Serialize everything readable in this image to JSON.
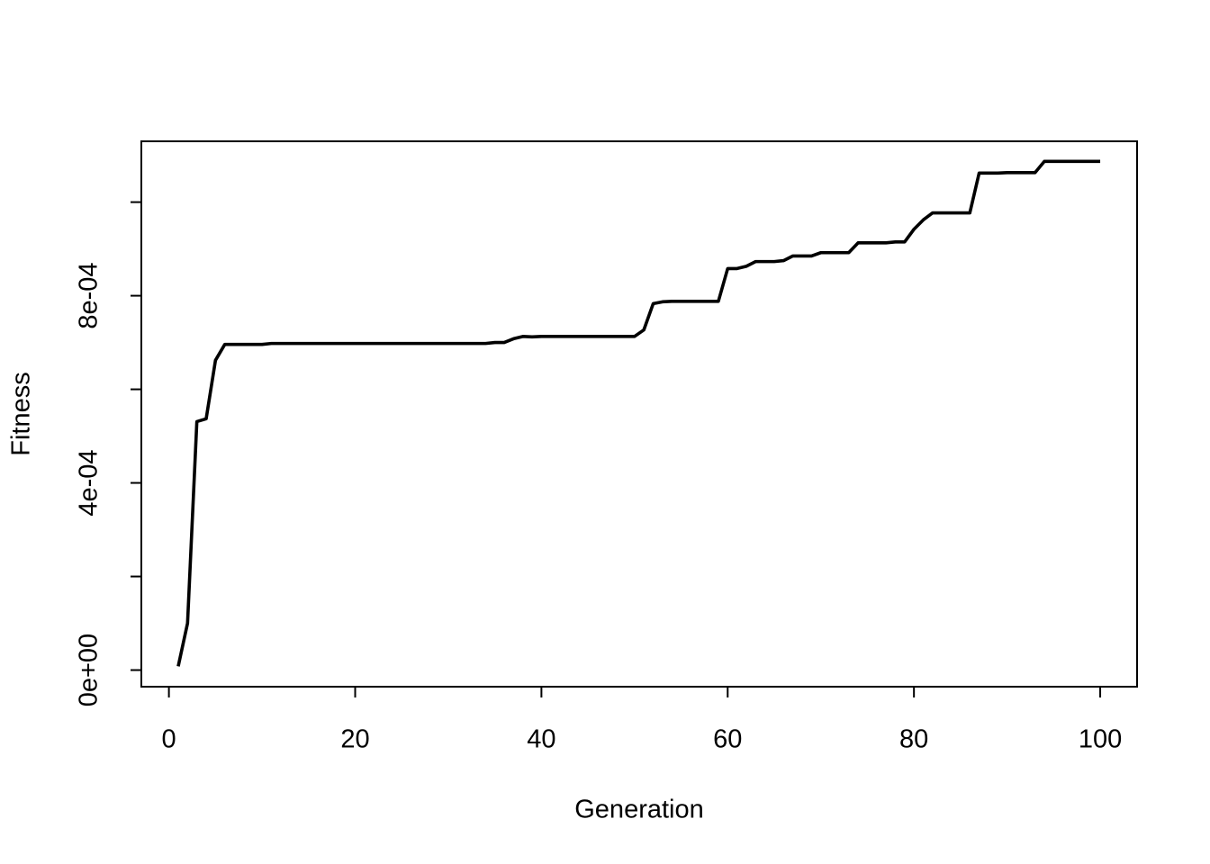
{
  "chart_data": {
    "type": "line",
    "x_label": "Generation",
    "y_label": "Fitness",
    "x": [
      1,
      2,
      3,
      4,
      5,
      6,
      7,
      8,
      9,
      10,
      11,
      12,
      13,
      14,
      15,
      16,
      17,
      18,
      19,
      20,
      21,
      22,
      23,
      24,
      25,
      26,
      27,
      28,
      29,
      30,
      31,
      32,
      33,
      34,
      35,
      36,
      37,
      38,
      39,
      40,
      41,
      42,
      43,
      44,
      45,
      46,
      47,
      48,
      49,
      50,
      51,
      52,
      53,
      54,
      55,
      56,
      57,
      58,
      59,
      60,
      61,
      62,
      63,
      64,
      65,
      66,
      67,
      68,
      69,
      70,
      71,
      72,
      73,
      74,
      75,
      76,
      77,
      78,
      79,
      80,
      81,
      82,
      83,
      84,
      85,
      86,
      87,
      88,
      89,
      90,
      91,
      92,
      93,
      94,
      95,
      96,
      97,
      98,
      99,
      100
    ],
    "values": [
      8e-06,
      0.0001,
      0.000531,
      0.000537,
      0.000662,
      0.000696,
      0.000696,
      0.000696,
      0.000696,
      0.000696,
      0.000698,
      0.000698,
      0.000698,
      0.000698,
      0.000698,
      0.000698,
      0.000698,
      0.000698,
      0.000698,
      0.000698,
      0.000698,
      0.000698,
      0.000698,
      0.000698,
      0.000698,
      0.000698,
      0.000698,
      0.000698,
      0.000698,
      0.000698,
      0.000698,
      0.000698,
      0.000698,
      0.000698,
      0.0007,
      0.0007,
      0.000708,
      0.000713,
      0.000712,
      0.000713,
      0.000713,
      0.000713,
      0.000713,
      0.000713,
      0.000713,
      0.000713,
      0.000713,
      0.000713,
      0.000713,
      0.000713,
      0.000727,
      0.000783,
      0.000787,
      0.000788,
      0.000788,
      0.000788,
      0.000788,
      0.000788,
      0.000788,
      0.000858,
      0.000858,
      0.000863,
      0.000873,
      0.000873,
      0.000873,
      0.000875,
      0.000885,
      0.000885,
      0.000885,
      0.000892,
      0.000892,
      0.000892,
      0.000892,
      0.000913,
      0.000913,
      0.000913,
      0.000913,
      0.000915,
      0.000915,
      0.000942,
      0.000962,
      0.000977,
      0.000977,
      0.000977,
      0.000977,
      0.000977,
      0.001062,
      0.001062,
      0.001062,
      0.001063,
      0.001063,
      0.001063,
      0.001063,
      0.001087,
      0.001087,
      0.001087,
      0.001087,
      0.001087,
      0.001087,
      0.001087
    ],
    "color": "#000000",
    "xlim": [
      -2.96,
      103.96
    ],
    "xticks": [
      0,
      20,
      40,
      60,
      80,
      100
    ],
    "ylim": [
      -3.55e-05,
      0.00113
    ],
    "yticks": [
      {
        "value": 0,
        "label": "0e+00"
      },
      {
        "value": 0.0004,
        "label": "4e-04"
      },
      {
        "value": 0.0008,
        "label": "8e-04"
      }
    ],
    "yticks_unlabeled": [
      0.0002,
      0.0006,
      0.001
    ]
  }
}
